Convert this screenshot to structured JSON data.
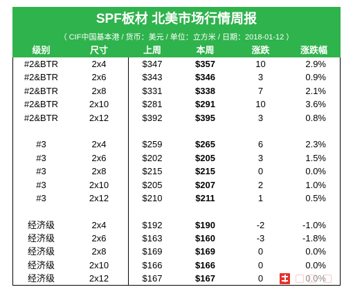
{
  "header": {
    "title": "SPF板材 北美市场行情周报",
    "subtitle": "（ CIF中国基本港 / 货币：美元 / 单位：立方米 / 日期：2018-01-12 ）"
  },
  "columns": [
    "级别",
    "尺寸",
    "上周",
    "本周",
    "涨跌",
    "涨跌幅"
  ],
  "groups": [
    {
      "rows": [
        {
          "grade": "#2&BTR",
          "size": "2x4",
          "last_week": "$347",
          "this_week": "$357",
          "change": "10",
          "change_pct": "2.9%"
        },
        {
          "grade": "#2&BTR",
          "size": "2x6",
          "last_week": "$343",
          "this_week": "$346",
          "change": "3",
          "change_pct": "0.9%"
        },
        {
          "grade": "#2&BTR",
          "size": "2x8",
          "last_week": "$331",
          "this_week": "$338",
          "change": "7",
          "change_pct": "2.1%"
        },
        {
          "grade": "#2&BTR",
          "size": "2x10",
          "last_week": "$281",
          "this_week": "$291",
          "change": "10",
          "change_pct": "3.6%"
        },
        {
          "grade": "#2&BTR",
          "size": "2x12",
          "last_week": "$392",
          "this_week": "$395",
          "change": "3",
          "change_pct": "0.8%"
        }
      ]
    },
    {
      "rows": [
        {
          "grade": "#3",
          "size": "2x4",
          "last_week": "$259",
          "this_week": "$265",
          "change": "6",
          "change_pct": "2.3%"
        },
        {
          "grade": "#3",
          "size": "2x6",
          "last_week": "$202",
          "this_week": "$205",
          "change": "3",
          "change_pct": "1.5%"
        },
        {
          "grade": "#3",
          "size": "2x8",
          "last_week": "$215",
          "this_week": "$215",
          "change": "0",
          "change_pct": "0.0%"
        },
        {
          "grade": "#3",
          "size": "2x10",
          "last_week": "$205",
          "this_week": "$207",
          "change": "2",
          "change_pct": "1.0%"
        },
        {
          "grade": "#3",
          "size": "2x12",
          "last_week": "$210",
          "this_week": "$211",
          "change": "1",
          "change_pct": "0.5%"
        }
      ]
    },
    {
      "rows": [
        {
          "grade": "经济级",
          "size": "2x4",
          "last_week": "$192",
          "this_week": "$190",
          "change": "-2",
          "change_pct": "-1.0%"
        },
        {
          "grade": "经济级",
          "size": "2x6",
          "last_week": "$163",
          "this_week": "$160",
          "change": "-3",
          "change_pct": "-1.8%"
        },
        {
          "grade": "经济级",
          "size": "2x8",
          "last_week": "$169",
          "this_week": "$169",
          "change": "0",
          "change_pct": "0.0%"
        },
        {
          "grade": "经济级",
          "size": "2x10",
          "last_week": "$166",
          "this_week": "$166",
          "change": "0",
          "change_pct": "0.0%"
        },
        {
          "grade": "经济级",
          "size": "2x12",
          "last_week": "$167",
          "this_week": "$167",
          "change": "0",
          "change_pct": "0.0%"
        }
      ]
    }
  ],
  "colors": {
    "header_bg": "#2fb34c",
    "header_text": "#ffffff",
    "text": "#000000",
    "watermark": "#e5322d"
  },
  "icons": {
    "watermark": "watermark-logo-icon"
  }
}
